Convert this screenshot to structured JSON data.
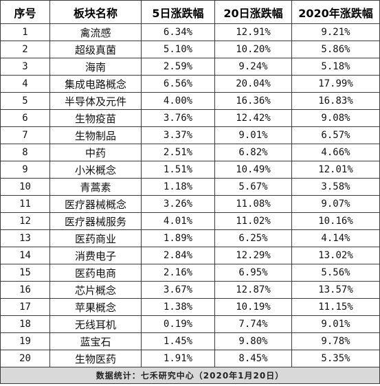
{
  "headers": [
    "序号",
    "板块名称",
    "5日涨跌幅",
    "20日涨跌幅",
    "2020年涨跌幅"
  ],
  "rows": [
    [
      "1",
      "禽流感",
      "6.34%",
      "12.91%",
      "9.21%"
    ],
    [
      "2",
      "超级真菌",
      "5.10%",
      "10.20%",
      "5.86%"
    ],
    [
      "3",
      "海南",
      "2.59%",
      "9.24%",
      "5.18%"
    ],
    [
      "4",
      "集成电路概念",
      "6.56%",
      "20.04%",
      "17.99%"
    ],
    [
      "5",
      "半导体及元件",
      "4.00%",
      "16.36%",
      "16.83%"
    ],
    [
      "6",
      "生物疫苗",
      "3.76%",
      "12.42%",
      "9.08%"
    ],
    [
      "7",
      "生物制品",
      "3.37%",
      "9.01%",
      "6.57%"
    ],
    [
      "8",
      "中药",
      "2.51%",
      "6.82%",
      "4.66%"
    ],
    [
      "9",
      "小米概念",
      "1.51%",
      "10.49%",
      "12.01%"
    ],
    [
      "10",
      "青蒿素",
      "1.18%",
      "5.67%",
      "3.58%"
    ],
    [
      "11",
      "医疗器械概念",
      "3.26%",
      "11.08%",
      "9.07%"
    ],
    [
      "12",
      "医疗器械服务",
      "4.01%",
      "11.02%",
      "10.16%"
    ],
    [
      "13",
      "医药商业",
      "1.89%",
      "6.25%",
      "4.14%"
    ],
    [
      "14",
      "消费电子",
      "2.84%",
      "12.29%",
      "13.02%"
    ],
    [
      "15",
      "医药电商",
      "2.16%",
      "6.95%",
      "5.56%"
    ],
    [
      "16",
      "芯片概念",
      "3.67%",
      "12.87%",
      "13.57%"
    ],
    [
      "17",
      "苹果概念",
      "1.38%",
      "10.19%",
      "11.15%"
    ],
    [
      "18",
      "无线耳机",
      "0.19%",
      "7.74%",
      "9.01%"
    ],
    [
      "19",
      "蓝宝石",
      "1.45%",
      "9.80%",
      "9.78%"
    ],
    [
      "20",
      "生物医药",
      "1.91%",
      "8.45%",
      "5.35%"
    ]
  ],
  "footer": "数据统计：七禾研究中心（2020年1月20日）"
}
